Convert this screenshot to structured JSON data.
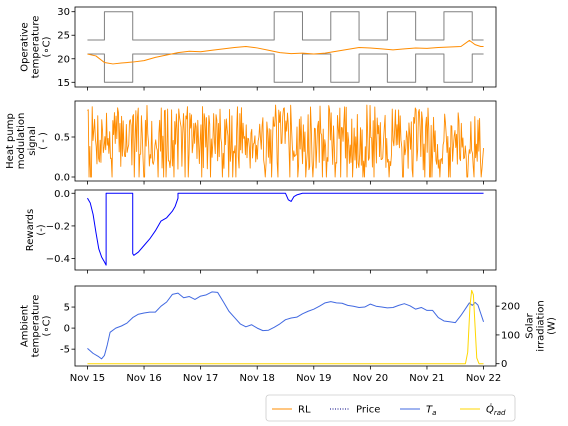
{
  "chart_data": [
    {
      "type": "line",
      "ylabel": [
        "Operative",
        "temperature",
        "(∘C)"
      ],
      "ylim": [
        14,
        31
      ],
      "yticks": [
        15,
        20,
        25,
        30
      ],
      "xlim": [
        -0.22,
        7.22
      ],
      "series": [
        {
          "name": "upper comfort bound",
          "color": "#808080",
          "step": true,
          "x": [
            0,
            0.3,
            0.3,
            0.8,
            0.8,
            3.3,
            3.3,
            3.8,
            3.8,
            4.3,
            4.3,
            4.8,
            4.8,
            5.3,
            5.3,
            5.8,
            5.8,
            6.3,
            6.3,
            6.8,
            6.8,
            7.0
          ],
          "y": [
            24,
            24,
            30,
            30,
            24,
            24,
            30,
            30,
            24,
            24,
            30,
            30,
            24,
            24,
            30,
            30,
            24,
            24,
            30,
            30,
            24,
            24
          ]
        },
        {
          "name": "lower comfort bound",
          "color": "#808080",
          "step": true,
          "x": [
            0,
            0.3,
            0.3,
            0.8,
            0.8,
            3.3,
            3.3,
            3.8,
            3.8,
            4.3,
            4.3,
            4.8,
            4.8,
            5.3,
            5.3,
            5.8,
            5.8,
            6.3,
            6.3,
            6.8,
            6.8,
            7.0
          ],
          "y": [
            21,
            21,
            15,
            15,
            21,
            21,
            15,
            15,
            21,
            21,
            15,
            15,
            21,
            21,
            15,
            15,
            21,
            21,
            15,
            15,
            21,
            21
          ]
        },
        {
          "name": "RL",
          "color": "#ff8c00",
          "x": [
            0,
            0.15,
            0.3,
            0.45,
            0.6,
            0.8,
            1.0,
            1.2,
            1.4,
            1.6,
            1.8,
            2.0,
            2.2,
            2.4,
            2.6,
            2.8,
            3.0,
            3.2,
            3.4,
            3.6,
            3.8,
            4.0,
            4.2,
            4.4,
            4.6,
            4.8,
            5.0,
            5.2,
            5.4,
            5.6,
            5.8,
            6.0,
            6.2,
            6.4,
            6.6,
            6.75,
            6.85,
            6.95,
            7.0
          ],
          "y": [
            21.0,
            20.6,
            19.2,
            18.9,
            19.1,
            19.3,
            19.6,
            20.3,
            20.8,
            21.3,
            21.6,
            21.5,
            21.8,
            22.1,
            22.4,
            22.6,
            22.3,
            21.8,
            21.3,
            21.1,
            21.2,
            21.0,
            21.2,
            21.6,
            22.0,
            22.4,
            22.3,
            22.1,
            21.9,
            22.1,
            22.3,
            22.2,
            22.4,
            22.5,
            22.6,
            23.9,
            23.0,
            22.6,
            22.6
          ]
        }
      ]
    },
    {
      "type": "line",
      "ylabel": [
        "Heat pump",
        "modulation",
        "signal",
        "( - )"
      ],
      "ylim": [
        -0.05,
        0.95
      ],
      "yticks": [
        0.0,
        0.5
      ],
      "yticklabels": [
        "0.0",
        "0.5"
      ],
      "xlim": [
        -0.22,
        7.22
      ],
      "series": [
        {
          "name": "RL",
          "color": "#ff8c00",
          "x_range": [
            0,
            7
          ],
          "count": 500,
          "min": 0.0,
          "max": 0.9,
          "seed": 7
        }
      ]
    },
    {
      "type": "line",
      "ylabel": [
        "Rewards",
        "(-)"
      ],
      "ylim": [
        -0.47,
        0.02
      ],
      "yticks": [
        0.0,
        -0.2,
        -0.4
      ],
      "yticklabels": [
        "0.0",
        "−0.2",
        "−0.4"
      ],
      "xlim": [
        -0.22,
        7.22
      ],
      "series": [
        {
          "name": "RL reward",
          "color": "#0000ff",
          "x": [
            0,
            0.05,
            0.1,
            0.15,
            0.2,
            0.25,
            0.3,
            0.33,
            0.33,
            0.5,
            0.8,
            0.8,
            0.82,
            0.9,
            1.0,
            1.1,
            1.2,
            1.3,
            1.4,
            1.5,
            1.55,
            1.6,
            1.6,
            2.0,
            3.0,
            3.5,
            3.55,
            3.6,
            3.65,
            3.7,
            3.8,
            4.0,
            5.0,
            6.0,
            7.0
          ],
          "y": [
            -0.03,
            -0.06,
            -0.13,
            -0.24,
            -0.34,
            -0.39,
            -0.42,
            -0.44,
            0.0,
            0.0,
            0.0,
            -0.37,
            -0.38,
            -0.36,
            -0.32,
            -0.28,
            -0.23,
            -0.17,
            -0.15,
            -0.11,
            -0.08,
            -0.03,
            0.0,
            0.0,
            0.0,
            0.0,
            -0.04,
            -0.05,
            -0.02,
            -0.01,
            0.0,
            0.0,
            0.0,
            0.0,
            0.0
          ]
        }
      ]
    },
    {
      "type": "line",
      "ylabel": [
        "Ambient",
        "temperature",
        "(∘C)"
      ],
      "ylabel_right": [
        "Solar",
        "irradiation",
        "(W)"
      ],
      "ylim": [
        -9,
        10
      ],
      "yticks": [
        -5,
        0,
        5
      ],
      "ylim_right": [
        -8,
        270
      ],
      "yticks_right": [
        0,
        100,
        200
      ],
      "xlim": [
        -0.22,
        7.22
      ],
      "x_ticklabels": [
        "Nov 15",
        "Nov 16",
        "Nov 17",
        "Nov 18",
        "Nov 19",
        "Nov 20",
        "Nov 21",
        "Nov 22"
      ],
      "series": [
        {
          "name": "T_a",
          "color": "#4169e1",
          "x": [
            0,
            0.1,
            0.2,
            0.25,
            0.3,
            0.35,
            0.4,
            0.5,
            0.6,
            0.7,
            0.8,
            0.9,
            1.0,
            1.1,
            1.2,
            1.3,
            1.4,
            1.5,
            1.6,
            1.7,
            1.8,
            1.9,
            2.0,
            2.1,
            2.2,
            2.3,
            2.4,
            2.5,
            2.6,
            2.7,
            2.8,
            2.9,
            3.0,
            3.1,
            3.2,
            3.3,
            3.4,
            3.5,
            3.6,
            3.7,
            3.8,
            3.9,
            4.0,
            4.1,
            4.2,
            4.3,
            4.4,
            4.5,
            4.6,
            4.7,
            4.8,
            4.9,
            5.0,
            5.1,
            5.2,
            5.3,
            5.4,
            5.5,
            5.6,
            5.7,
            5.8,
            5.9,
            6.0,
            6.1,
            6.2,
            6.3,
            6.4,
            6.5,
            6.6,
            6.7,
            6.75,
            6.8,
            6.85,
            6.9,
            6.95,
            7.0
          ],
          "y": [
            -4.8,
            -6.0,
            -6.8,
            -7.3,
            -6.5,
            -4.0,
            -1.0,
            0.0,
            0.5,
            1.2,
            2.5,
            3.3,
            3.6,
            3.8,
            3.8,
            5.2,
            6.2,
            8.0,
            8.3,
            7.2,
            7.5,
            6.8,
            7.6,
            7.9,
            8.6,
            8.5,
            6.3,
            4.0,
            2.5,
            1.0,
            0.3,
            0.8,
            0.0,
            -0.6,
            -0.5,
            0.2,
            1.0,
            2.0,
            2.4,
            2.6,
            3.4,
            4.0,
            4.5,
            5.2,
            6.0,
            6.3,
            6.0,
            5.9,
            5.4,
            5.2,
            4.9,
            5.0,
            5.7,
            5.2,
            5.0,
            4.8,
            4.9,
            5.4,
            5.8,
            5.3,
            4.5,
            4.9,
            4.2,
            4.2,
            2.5,
            1.7,
            1.5,
            1.3,
            3.0,
            5.0,
            6.0,
            5.4,
            6.1,
            5.5,
            3.5,
            1.5
          ]
        },
        {
          "name": "Q_rad",
          "color": "#ffd700",
          "right_axis": true,
          "x": [
            0,
            6.6,
            6.68,
            6.72,
            6.76,
            6.79,
            6.82,
            6.85,
            6.88,
            6.92,
            6.96,
            7.0
          ],
          "y": [
            0,
            0,
            0,
            40,
            200,
            255,
            240,
            130,
            20,
            0,
            0,
            0
          ]
        }
      ]
    }
  ],
  "legend": {
    "items": [
      {
        "label": "RL",
        "color": "#ff8c00",
        "style": "solid"
      },
      {
        "label": "Price",
        "color": "#000080",
        "style": "dotted"
      },
      {
        "label": "T_a",
        "color": "#4169e1",
        "style": "solid"
      },
      {
        "label": "Q_rad",
        "color": "#ffd700",
        "style": "solid"
      }
    ]
  }
}
